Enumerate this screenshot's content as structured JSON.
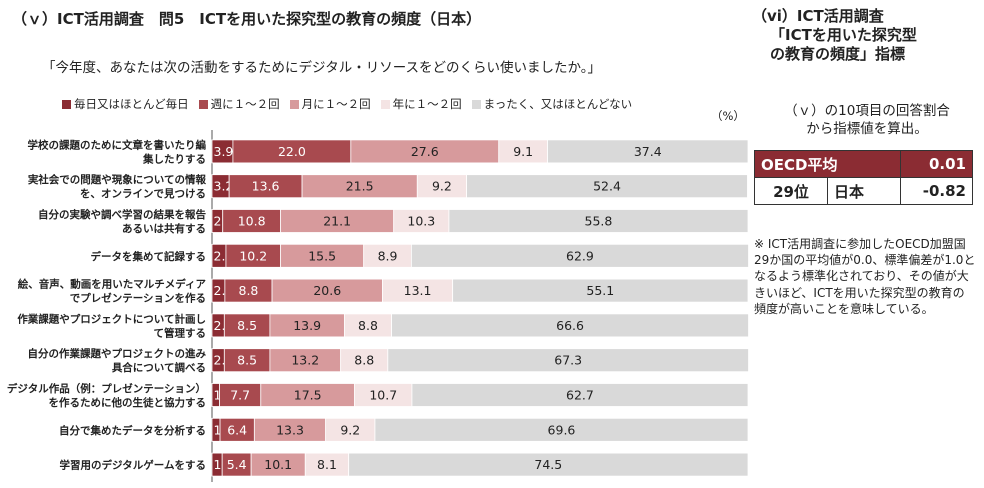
{
  "title": "（ｖ）ICT活用調査　問5　ICTを用いた探究型の教育の頻度（日本）",
  "question": "「今年度、あなたは次の活動をするためにデジタル・リソースをどのくらい使いましたか。」",
  "unit_label": "（%）",
  "side": {
    "title_line1": "（vi）ICT活用調査",
    "title_line2": "「ICTを用いた探究型",
    "title_line3": "の教育の頻度」指標",
    "note_line1": "（ｖ）の10項目の回答割合",
    "note_line2": "から指標値を算出。",
    "oecd_label": "OECD平均",
    "oecd_value": "0.01",
    "rank": "29位",
    "country": "日本",
    "japan_value": "-0.82",
    "footnote": "※ ICT活用調査に参加したOECD加盟国29か国の平均値が0.0、標準偏差が1.0となるよう標準化されており、その値が大きいほど、ICTを用いた探究型の教育の頻度が高いことを意味している。"
  },
  "colors": {
    "series": [
      "#8b2c33",
      "#a84a4f",
      "#d79a9c",
      "#f4e4e4",
      "#d9d9d9"
    ],
    "table_header": "#8b2c33"
  },
  "chart_data": {
    "type": "bar",
    "orientation": "horizontal",
    "stacked": true,
    "xlim": [
      0,
      100
    ],
    "legend_position": "top",
    "categories": [
      [
        "学校の課題のために文章を書いたり編",
        "集したりする"
      ],
      [
        "実社会での問題や現象についての情報",
        "を、オンラインで見つける"
      ],
      [
        "自分の実験や調べ学習の結果を報告",
        "あるいは共有する"
      ],
      [
        "データを集めて記録する"
      ],
      [
        "絵、音声、動画を用いたマルチメディア",
        "でプレゼンテーションを作る"
      ],
      [
        "作業課題やプロジェクトについて計画し",
        "て管理する"
      ],
      [
        "自分の作業課題やプロジェクトの進み",
        "具合について調べる"
      ],
      [
        "デジタル作品（例：プレゼンテーション）",
        "を作るために他の生徒と協力する"
      ],
      [
        "自分で集めたデータを分析する"
      ],
      [
        "学習用のデジタルゲームをする"
      ]
    ],
    "series": [
      {
        "name": "毎日又はほとんど毎日",
        "values": [
          3.9,
          3.2,
          2.0,
          2.6,
          2.4,
          2.3,
          2.3,
          1.4,
          1.5,
          1.9
        ]
      },
      {
        "name": "週に１～２回",
        "values": [
          22.0,
          13.6,
          10.8,
          10.2,
          8.8,
          8.5,
          8.5,
          7.7,
          6.4,
          5.4
        ]
      },
      {
        "name": "月に１～２回",
        "values": [
          27.6,
          21.5,
          21.1,
          15.5,
          20.6,
          13.9,
          13.2,
          17.5,
          13.3,
          10.1
        ]
      },
      {
        "name": "年に１～２回",
        "values": [
          9.1,
          9.2,
          10.3,
          8.9,
          13.1,
          8.8,
          8.8,
          10.7,
          9.2,
          8.1
        ]
      },
      {
        "name": "まったく、又はほとんどない",
        "values": [
          37.4,
          52.4,
          55.8,
          62.9,
          55.1,
          66.6,
          67.3,
          62.7,
          69.6,
          74.5
        ]
      }
    ]
  }
}
